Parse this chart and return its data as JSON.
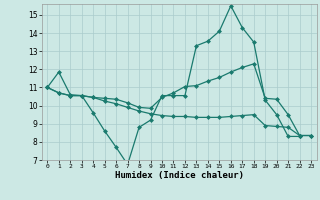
{
  "xlabel": "Humidex (Indice chaleur)",
  "bg_color": "#cce8e4",
  "line_color": "#1a7a6e",
  "grid_color": "#aacccc",
  "xlim": [
    -0.5,
    23.5
  ],
  "ylim": [
    7,
    15.6
  ],
  "yticks": [
    7,
    8,
    9,
    10,
    11,
    12,
    13,
    14,
    15
  ],
  "xticks": [
    0,
    1,
    2,
    3,
    4,
    5,
    6,
    7,
    8,
    9,
    10,
    11,
    12,
    13,
    14,
    15,
    16,
    17,
    18,
    19,
    20,
    21,
    22,
    23
  ],
  "line1_x": [
    0,
    1,
    2,
    3,
    4,
    5,
    6,
    7,
    8,
    9,
    10,
    11,
    12,
    13,
    14,
    15,
    16,
    17,
    18,
    19,
    20,
    21,
    22
  ],
  "line1_y": [
    11.0,
    11.85,
    10.6,
    10.55,
    9.6,
    8.6,
    7.7,
    6.75,
    8.8,
    9.2,
    10.55,
    10.55,
    10.55,
    13.3,
    13.55,
    14.1,
    15.5,
    14.3,
    13.5,
    10.3,
    9.5,
    8.3,
    8.3
  ],
  "line2_x": [
    0,
    1,
    2,
    3,
    4,
    5,
    6,
    7,
    8,
    9,
    10,
    11,
    12,
    13,
    14,
    15,
    16,
    17,
    18,
    19,
    20,
    21,
    22,
    23
  ],
  "line2_y": [
    11.0,
    10.7,
    10.55,
    10.55,
    10.45,
    10.4,
    10.35,
    10.15,
    9.9,
    9.85,
    10.45,
    10.7,
    11.05,
    11.1,
    11.35,
    11.55,
    11.85,
    12.1,
    12.3,
    10.4,
    10.35,
    9.5,
    8.35,
    8.35
  ],
  "line3_x": [
    0,
    1,
    2,
    3,
    4,
    5,
    6,
    7,
    8,
    9,
    10,
    11,
    12,
    13,
    14,
    15,
    16,
    17,
    18,
    19,
    20,
    21,
    22,
    23
  ],
  "line3_y": [
    11.0,
    10.7,
    10.55,
    10.55,
    10.45,
    10.25,
    10.1,
    9.9,
    9.7,
    9.55,
    9.45,
    9.4,
    9.4,
    9.35,
    9.35,
    9.35,
    9.4,
    9.45,
    9.5,
    8.9,
    8.85,
    8.8,
    8.35,
    8.35
  ],
  "marker_size": 2.5,
  "line_width": 0.9
}
